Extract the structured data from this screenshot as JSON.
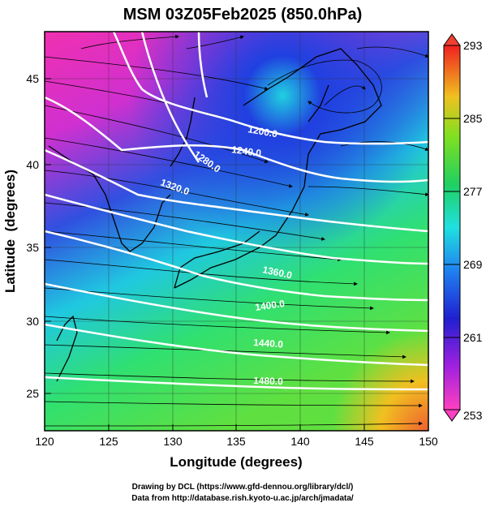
{
  "title": "MSM 03Z05Feb2025 (850.0hPa)",
  "axes": {
    "xlabel": "Longitude (degrees)",
    "ylabel": "Latitude  (degrees)",
    "x_ticks": [
      "120",
      "125",
      "130",
      "135",
      "140",
      "145",
      "150"
    ],
    "y_ticks": [
      "25",
      "30",
      "35",
      "40",
      "45"
    ]
  },
  "contour_labels": [
    "1200.0",
    "1240.0",
    "1280.0",
    "1320.0",
    "1360.0",
    "1400.0",
    "1440.0",
    "1480.0"
  ],
  "colorbar": {
    "tick_labels": [
      "293",
      "285",
      "277",
      "269",
      "261",
      "253"
    ]
  },
  "credits": {
    "line1": "Drawing by DCL (https://www.gfd-dennou.org/library/dcl/)",
    "line2": "Data from http://database.rish.kyoto-u.ac.jp/arch/jmadata/"
  },
  "colors": {
    "cold": "#e040c0",
    "cool": "#2040e0",
    "mild": "#20e0e0",
    "warm": "#40e040",
    "hot": "#f0a020",
    "contour": "#ffffff",
    "streamline": "#000000"
  }
}
